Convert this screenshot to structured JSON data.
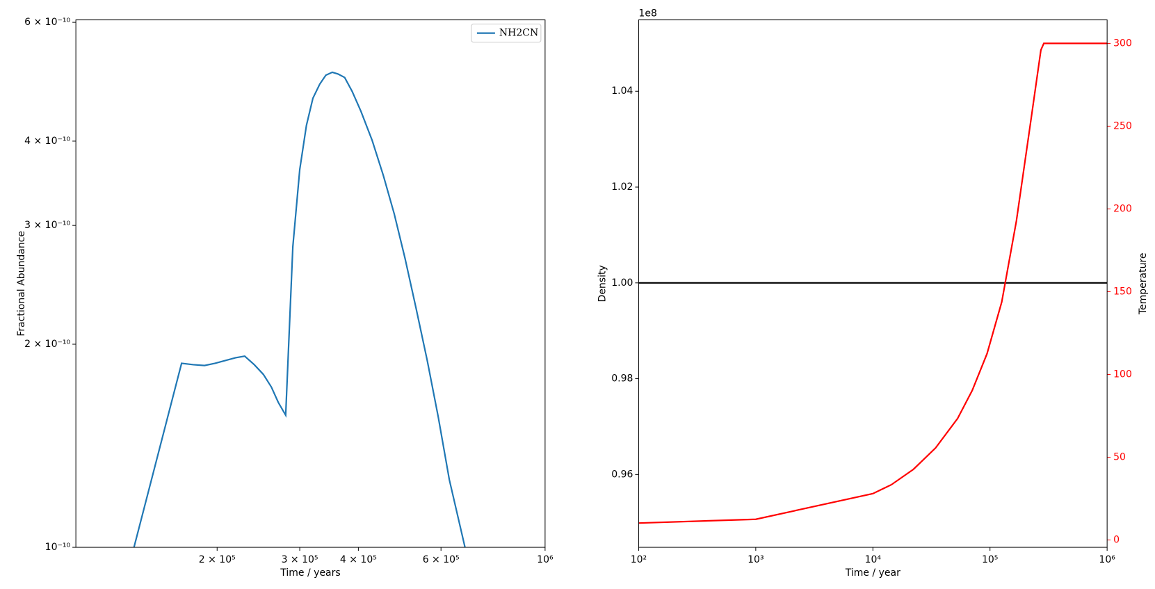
{
  "chart_data": [
    {
      "type": "line",
      "xlabel": "Time / years",
      "ylabel": "Fractional Abundance",
      "xscale": "log",
      "yscale": "log",
      "xlim": [
        100000,
        1000000
      ],
      "ylim": [
        1e-10,
        6.05e-10
      ],
      "xticks": [
        {
          "value": 200000,
          "label": "2 × 10⁵"
        },
        {
          "value": 300000,
          "label": "3 × 10⁵"
        },
        {
          "value": 400000,
          "label": "4 × 10⁵"
        },
        {
          "value": 600000,
          "label": "6 × 10⁵"
        },
        {
          "value": 1000000,
          "label": "10⁶"
        }
      ],
      "yticks": [
        {
          "value": 1e-10,
          "label": "10⁻¹⁰"
        },
        {
          "value": 2e-10,
          "label": "2 × 10⁻¹⁰"
        },
        {
          "value": 3e-10,
          "label": "3 × 10⁻¹⁰"
        },
        {
          "value": 4e-10,
          "label": "4 × 10⁻¹⁰"
        },
        {
          "value": 6e-10,
          "label": "6 × 10⁻¹⁰"
        }
      ],
      "legend": "upper right",
      "series": [
        {
          "name": "NH2CN",
          "color": "#1f77b4",
          "x": [
            133000,
            168000,
            178000,
            188000,
            198000,
            219000,
            229000,
            240000,
            251000,
            261000,
            270000,
            280000,
            290000,
            300000,
            310000,
            320000,
            331000,
            341000,
            352000,
            362000,
            374000,
            388000,
            405000,
            428000,
            452000,
            477000,
            503000,
            531000,
            561000,
            592000,
            625000,
            675000
          ],
          "values": [
            1e-10,
            1.874e-10,
            1.865e-10,
            1.86e-10,
            1.874e-10,
            1.91e-10,
            1.92e-10,
            1.865e-10,
            1.804e-10,
            1.728e-10,
            1.64e-10,
            1.57e-10,
            2.79e-10,
            3.63e-10,
            4.22e-10,
            4.63e-10,
            4.86e-10,
            5.01e-10,
            5.06e-10,
            5.03e-10,
            4.97e-10,
            4.74e-10,
            4.43e-10,
            4.01e-10,
            3.56e-10,
            3.12e-10,
            2.68e-10,
            2.26e-10,
            1.89e-10,
            1.56e-10,
            1.26e-10,
            1e-10
          ]
        }
      ]
    },
    {
      "type": "line",
      "xlabel": "Time / year",
      "ylabel": "Density",
      "y2label": "Temperature",
      "y_offset_label": "1e8",
      "xscale": "log",
      "xlim": [
        100,
        1000000
      ],
      "xticks": [
        {
          "value": 100,
          "label": "10²"
        },
        {
          "value": 1000,
          "label": "10³"
        },
        {
          "value": 10000,
          "label": "10⁴"
        },
        {
          "value": 100000,
          "label": "10⁵"
        },
        {
          "value": 1000000,
          "label": "10⁶"
        }
      ],
      "ylim": [
        0.9448,
        1.0549
      ],
      "yticks": [
        0.96,
        0.98,
        {
          "value": 1,
          "label": "1.00"
        },
        1.02,
        1.04
      ],
      "y2lim": [
        -4.45,
        314.2
      ],
      "y2ticks": [
        0,
        50,
        100,
        150,
        200,
        250,
        300
      ],
      "y2color": "#ff0000",
      "series": [
        {
          "color": "#000000",
          "x": [
            100,
            1000000
          ],
          "values": [
            1,
            1
          ]
        },
        {
          "color": "#ff0000",
          "axis": "y2",
          "x": [
            100,
            1000,
            10000,
            14400,
            22200,
            34300,
            52900,
            70600,
            94400,
            126000,
            168000,
            225000,
            272000,
            288000,
            1000000
          ],
          "values": [
            10.2,
            12.5,
            28,
            33.4,
            42.7,
            55.6,
            73.4,
            90.4,
            112.6,
            143.8,
            192.7,
            255,
            296,
            300,
            300
          ]
        }
      ]
    }
  ]
}
